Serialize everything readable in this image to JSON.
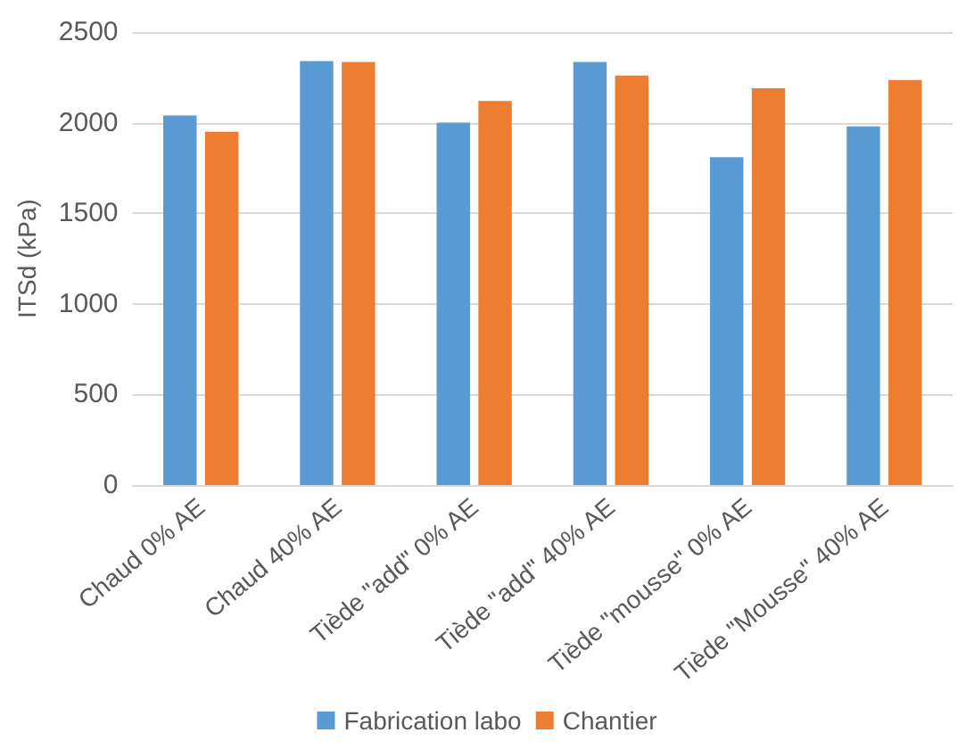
{
  "chart_data": {
    "type": "bar",
    "ylabel": "ITSd (kPa)",
    "categories": [
      "Chaud 0% AE",
      "Chaud 40% AE",
      "Tiède \"add\" 0% AE",
      "Tiède \"add\" 40% AE",
      "Tiède \"mousse\" 0% AE",
      "Tiède \"Mousse\" 40% AE"
    ],
    "series": [
      {
        "name": "Fabrication labo",
        "color": "#5b9bd5",
        "values": [
          2040,
          2340,
          2000,
          2335,
          1810,
          1980
        ]
      },
      {
        "name": "Chantier",
        "color": "#ed7d31",
        "values": [
          1950,
          2335,
          2120,
          2260,
          2190,
          2235
        ]
      }
    ],
    "ylim": [
      0,
      2500
    ],
    "yticks": [
      0,
      500,
      1000,
      1500,
      2000,
      2500
    ],
    "grid": "y",
    "legend": "bottom"
  }
}
